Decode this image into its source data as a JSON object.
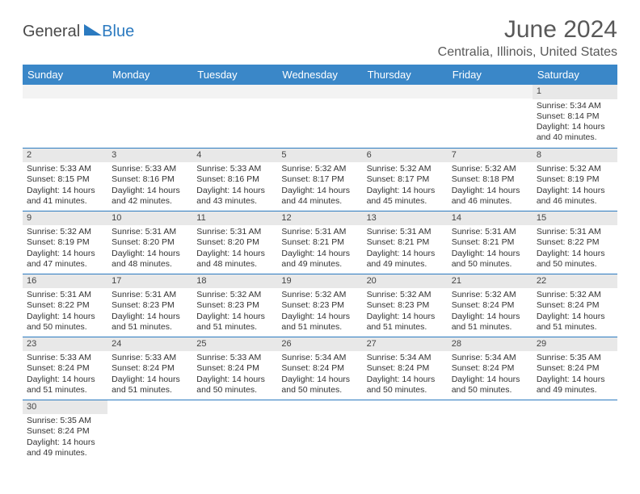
{
  "logo": {
    "general": "General",
    "blue": "Blue"
  },
  "title": "June 2024",
  "location": "Centralia, Illinois, United States",
  "colors": {
    "header_bg": "#3a87c8",
    "header_text": "#ffffff",
    "border": "#2b7ac0",
    "daynum_bg": "#e8e8e8",
    "text": "#333333",
    "title_text": "#595959"
  },
  "weekdays": [
    "Sunday",
    "Monday",
    "Tuesday",
    "Wednesday",
    "Thursday",
    "Friday",
    "Saturday"
  ],
  "weeks": [
    [
      null,
      null,
      null,
      null,
      null,
      null,
      {
        "n": "1",
        "sr": "Sunrise: 5:34 AM",
        "ss": "Sunset: 8:14 PM",
        "dl": "Daylight: 14 hours and 40 minutes."
      }
    ],
    [
      {
        "n": "2",
        "sr": "Sunrise: 5:33 AM",
        "ss": "Sunset: 8:15 PM",
        "dl": "Daylight: 14 hours and 41 minutes."
      },
      {
        "n": "3",
        "sr": "Sunrise: 5:33 AM",
        "ss": "Sunset: 8:16 PM",
        "dl": "Daylight: 14 hours and 42 minutes."
      },
      {
        "n": "4",
        "sr": "Sunrise: 5:33 AM",
        "ss": "Sunset: 8:16 PM",
        "dl": "Daylight: 14 hours and 43 minutes."
      },
      {
        "n": "5",
        "sr": "Sunrise: 5:32 AM",
        "ss": "Sunset: 8:17 PM",
        "dl": "Daylight: 14 hours and 44 minutes."
      },
      {
        "n": "6",
        "sr": "Sunrise: 5:32 AM",
        "ss": "Sunset: 8:17 PM",
        "dl": "Daylight: 14 hours and 45 minutes."
      },
      {
        "n": "7",
        "sr": "Sunrise: 5:32 AM",
        "ss": "Sunset: 8:18 PM",
        "dl": "Daylight: 14 hours and 46 minutes."
      },
      {
        "n": "8",
        "sr": "Sunrise: 5:32 AM",
        "ss": "Sunset: 8:19 PM",
        "dl": "Daylight: 14 hours and 46 minutes."
      }
    ],
    [
      {
        "n": "9",
        "sr": "Sunrise: 5:32 AM",
        "ss": "Sunset: 8:19 PM",
        "dl": "Daylight: 14 hours and 47 minutes."
      },
      {
        "n": "10",
        "sr": "Sunrise: 5:31 AM",
        "ss": "Sunset: 8:20 PM",
        "dl": "Daylight: 14 hours and 48 minutes."
      },
      {
        "n": "11",
        "sr": "Sunrise: 5:31 AM",
        "ss": "Sunset: 8:20 PM",
        "dl": "Daylight: 14 hours and 48 minutes."
      },
      {
        "n": "12",
        "sr": "Sunrise: 5:31 AM",
        "ss": "Sunset: 8:21 PM",
        "dl": "Daylight: 14 hours and 49 minutes."
      },
      {
        "n": "13",
        "sr": "Sunrise: 5:31 AM",
        "ss": "Sunset: 8:21 PM",
        "dl": "Daylight: 14 hours and 49 minutes."
      },
      {
        "n": "14",
        "sr": "Sunrise: 5:31 AM",
        "ss": "Sunset: 8:21 PM",
        "dl": "Daylight: 14 hours and 50 minutes."
      },
      {
        "n": "15",
        "sr": "Sunrise: 5:31 AM",
        "ss": "Sunset: 8:22 PM",
        "dl": "Daylight: 14 hours and 50 minutes."
      }
    ],
    [
      {
        "n": "16",
        "sr": "Sunrise: 5:31 AM",
        "ss": "Sunset: 8:22 PM",
        "dl": "Daylight: 14 hours and 50 minutes."
      },
      {
        "n": "17",
        "sr": "Sunrise: 5:31 AM",
        "ss": "Sunset: 8:23 PM",
        "dl": "Daylight: 14 hours and 51 minutes."
      },
      {
        "n": "18",
        "sr": "Sunrise: 5:32 AM",
        "ss": "Sunset: 8:23 PM",
        "dl": "Daylight: 14 hours and 51 minutes."
      },
      {
        "n": "19",
        "sr": "Sunrise: 5:32 AM",
        "ss": "Sunset: 8:23 PM",
        "dl": "Daylight: 14 hours and 51 minutes."
      },
      {
        "n": "20",
        "sr": "Sunrise: 5:32 AM",
        "ss": "Sunset: 8:23 PM",
        "dl": "Daylight: 14 hours and 51 minutes."
      },
      {
        "n": "21",
        "sr": "Sunrise: 5:32 AM",
        "ss": "Sunset: 8:24 PM",
        "dl": "Daylight: 14 hours and 51 minutes."
      },
      {
        "n": "22",
        "sr": "Sunrise: 5:32 AM",
        "ss": "Sunset: 8:24 PM",
        "dl": "Daylight: 14 hours and 51 minutes."
      }
    ],
    [
      {
        "n": "23",
        "sr": "Sunrise: 5:33 AM",
        "ss": "Sunset: 8:24 PM",
        "dl": "Daylight: 14 hours and 51 minutes."
      },
      {
        "n": "24",
        "sr": "Sunrise: 5:33 AM",
        "ss": "Sunset: 8:24 PM",
        "dl": "Daylight: 14 hours and 51 minutes."
      },
      {
        "n": "25",
        "sr": "Sunrise: 5:33 AM",
        "ss": "Sunset: 8:24 PM",
        "dl": "Daylight: 14 hours and 50 minutes."
      },
      {
        "n": "26",
        "sr": "Sunrise: 5:34 AM",
        "ss": "Sunset: 8:24 PM",
        "dl": "Daylight: 14 hours and 50 minutes."
      },
      {
        "n": "27",
        "sr": "Sunrise: 5:34 AM",
        "ss": "Sunset: 8:24 PM",
        "dl": "Daylight: 14 hours and 50 minutes."
      },
      {
        "n": "28",
        "sr": "Sunrise: 5:34 AM",
        "ss": "Sunset: 8:24 PM",
        "dl": "Daylight: 14 hours and 50 minutes."
      },
      {
        "n": "29",
        "sr": "Sunrise: 5:35 AM",
        "ss": "Sunset: 8:24 PM",
        "dl": "Daylight: 14 hours and 49 minutes."
      }
    ],
    [
      {
        "n": "30",
        "sr": "Sunrise: 5:35 AM",
        "ss": "Sunset: 8:24 PM",
        "dl": "Daylight: 14 hours and 49 minutes."
      },
      null,
      null,
      null,
      null,
      null,
      null
    ]
  ]
}
